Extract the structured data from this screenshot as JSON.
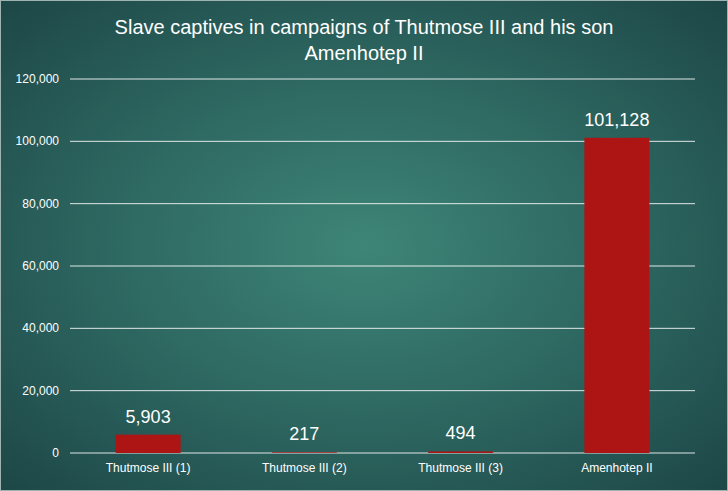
{
  "chart_data": {
    "type": "bar",
    "title": "Slave captives in campaigns of Thutmose III and his son Amenhotep II",
    "categories": [
      "Thutmose III (1)",
      "Thutmose III (2)",
      "Thutmose III (3)",
      "Amenhotep II"
    ],
    "values": [
      5903,
      217,
      494,
      101128
    ],
    "value_labels": [
      "5,903",
      "217",
      "494",
      "101,128"
    ],
    "color": "#ad1414",
    "ylim": [
      0,
      120000
    ],
    "yticks": [
      0,
      {
        "value": 20000,
        "label": "20,000"
      },
      {
        "value": 40000,
        "label": "40,000"
      },
      {
        "value": 60000,
        "label": "60,000"
      },
      {
        "value": 80000,
        "label": "80,000"
      },
      {
        "value": 100000,
        "label": "100,000"
      },
      {
        "value": 120000,
        "label": "120,000"
      }
    ],
    "grid": true,
    "data_labels": true
  }
}
